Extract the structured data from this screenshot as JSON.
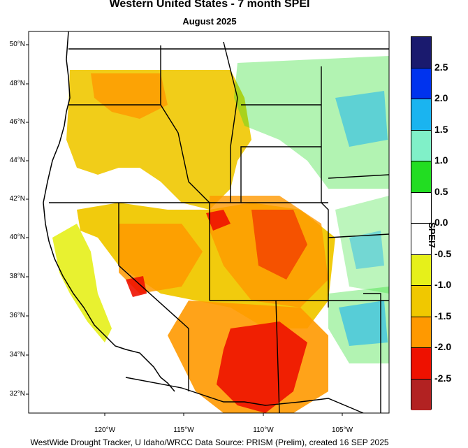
{
  "title": "Western United States - 7 month SPEI",
  "subtitle": "August 2025",
  "footer": "WestWide Drought Tracker, U Idaho/WRCC Data Source: PRISM (Prelim), created 16 SEP 2025",
  "lat_labels": [
    "50°N",
    "48°N",
    "46°N",
    "44°N",
    "42°N",
    "40°N",
    "38°N",
    "36°N",
    "34°N",
    "32°N"
  ],
  "lon_labels": [
    "120°W",
    "115°W",
    "110°W",
    "105°W"
  ],
  "legend": {
    "title": "SPEI7",
    "colors": [
      "#1a1a6e",
      "#0033ee",
      "#1ab4f0",
      "#80f0c8",
      "#22dd22",
      "#ffffff",
      "#ffffff",
      "#e6f01a",
      "#f0c800",
      "#ff9900",
      "#ee1100",
      "#b22222"
    ],
    "labels": [
      "2.5",
      "2.0",
      "1.5",
      "1.0",
      "0.5",
      "0.0",
      "-0.5",
      "-1.0",
      "-1.5",
      "-2.0",
      "-2.5"
    ]
  }
}
